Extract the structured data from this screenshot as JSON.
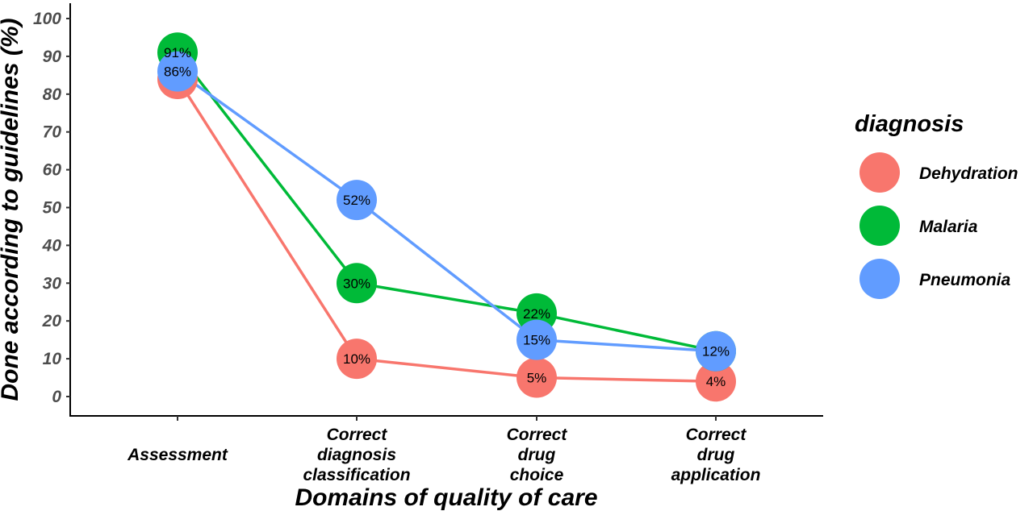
{
  "chart_data": {
    "type": "line",
    "categories": [
      [
        "Assessment"
      ],
      [
        "Correct",
        "diagnosis",
        "classification"
      ],
      [
        "Correct",
        "drug",
        "choice"
      ],
      [
        "Correct",
        "drug",
        "application"
      ]
    ],
    "xlabel": "Domains of quality of care",
    "ylabel": "Done according to guidelines (%)",
    "ylim": [
      0,
      100
    ],
    "yticks": [
      0,
      10,
      20,
      30,
      40,
      50,
      60,
      70,
      80,
      90,
      100
    ],
    "grid": false,
    "legend": {
      "title": "diagnosis",
      "placement": "right"
    },
    "series": [
      {
        "name": "Dehydration",
        "color": "#F8766D",
        "values": [
          84,
          10,
          5,
          4
        ],
        "labels": [
          "",
          "10%",
          "5%",
          "4%"
        ]
      },
      {
        "name": "Malaria",
        "color": "#00BA38",
        "values": [
          91,
          30,
          22,
          12
        ],
        "labels": [
          "91%",
          "30%",
          "22%",
          "12%"
        ]
      },
      {
        "name": "Pneumonia",
        "color": "#619CFF",
        "values": [
          86,
          52,
          15,
          12
        ],
        "labels": [
          "86%",
          "52%",
          "15%",
          ""
        ]
      }
    ]
  }
}
